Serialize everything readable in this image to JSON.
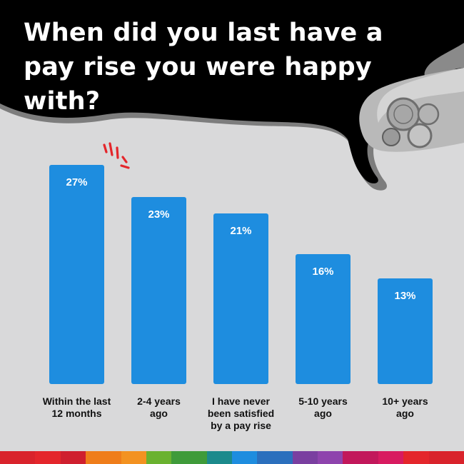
{
  "title": "When did you last have a pay rise you were happy with?",
  "colors": {
    "background": "#d9d9da",
    "header": "#000000",
    "bar": "#1e8ddf",
    "accent": "#e4262b",
    "stripe": [
      "#d9232b",
      "#e4262b",
      "#cf1f2e",
      "#ef7d1a",
      "#f39221",
      "#6ab22f",
      "#3f9b3a",
      "#1c8a8c",
      "#1e8ddf",
      "#2b6fbd",
      "#7a3fa0",
      "#8e44ad",
      "#c2185b",
      "#d81b60",
      "#e4262b",
      "#d9232b"
    ]
  },
  "decor": [
    "hand-with-coins-icon",
    "emphasis-lines-icon"
  ],
  "chart_data": {
    "type": "bar",
    "title": "When did you last have a pay rise you were happy with?",
    "categories": [
      "Within the last\n12 months",
      "2-4 years\nago",
      "I have never\nbeen satisfied\nby a pay rise",
      "5-10 years\nago",
      "10+ years\nago"
    ],
    "values": [
      27,
      23,
      21,
      16,
      13
    ],
    "value_labels": [
      "27%",
      "23%",
      "21%",
      "16%",
      "13%"
    ],
    "ylim": [
      0,
      27
    ],
    "xlabel": "",
    "ylabel": "",
    "grid": false,
    "legend": "none"
  }
}
